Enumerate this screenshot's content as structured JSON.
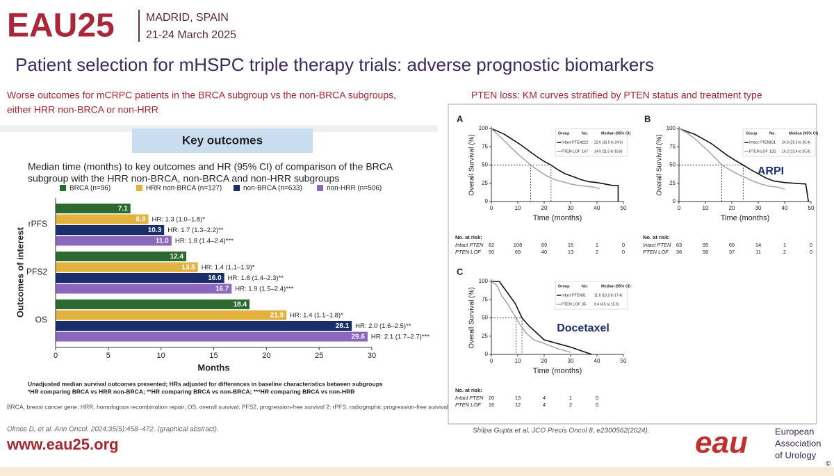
{
  "header": {
    "logo": "EAU25",
    "city": "MADRID, SPAIN",
    "dates": "21-24 March 2025",
    "title": "Patient selection for mHSPC triple therapy trials: adverse prognostic biomarkers"
  },
  "left": {
    "subtitle_lines": [
      "Worse outcomes for mCRPC patients in the BRCA subgroup vs the non-BRCA subgroups,",
      "either HRR non-BRCA or non-HRR"
    ],
    "box_title": "Key outcomes",
    "caption_lines": [
      "Median time (months) to key outcomes and HR (95% CI) of comparison of the BRCA",
      "subgroup with the HRR non-BRCA, non-BRCA and non-HRR subgroups"
    ],
    "footnotes": [
      "Unadjusted median survival outcomes presented; HRs adjusted for differences in baseline characteristics between subgroups",
      "*HR comparing BRCA vs HRR non-BRCA; **HR comparing BRCA vs non-BRCA; ***HR comparing BRCA vs non-HRR"
    ],
    "abbreviations": "BRCA, breast cancer gene; HRR, homologous recombination repair; OS, overall survival; PFS2, progression-free survival 2; rPFS, radiographic progression-free survival",
    "citation": "Olmos D, et al. Ann Oncol. 2024;35(5):458–472. (graphical abstract)."
  },
  "right": {
    "subtitle": "PTEN loss: KM curves stratified by PTEN status and treatment type",
    "citation": "Shilpa Gupta et al. JCO Precis Oncol 8, e2300562(2024)."
  },
  "footer": {
    "url": "www.eau25.org",
    "logo": "eau",
    "org_lines": [
      "European",
      "Association",
      "of Urology"
    ],
    "copyright": "©"
  },
  "chart_data": [
    {
      "type": "hbar",
      "categories": [
        "rPFS",
        "PFS2",
        "OS"
      ],
      "xlabel": "Months",
      "ylabel": "Outcomes of interest",
      "xlim": [
        0,
        30
      ],
      "xticks": [
        0,
        5,
        10,
        15,
        20,
        25,
        30
      ],
      "legend": "top",
      "series": [
        {
          "name": "BRCA (n=96)",
          "color": "#2d6a30",
          "values": [
            7.1,
            12.4,
            18.4
          ],
          "value_labels": [
            "7.1",
            "12.4",
            "18.4"
          ]
        },
        {
          "name": "HRR non-BRCA (n=127)",
          "color": "#e2b23f",
          "values": [
            8.8,
            13.5,
            21.9
          ],
          "value_labels": [
            "8.8",
            "13.5",
            "21.9"
          ],
          "annotations": [
            "HR: 1.3 (1.0–1.8)*",
            "HR: 1.4 (1.1–1.9)*",
            "HR: 1.4 (1.1–1.8)*"
          ]
        },
        {
          "name": "non-BRCA (n=633)",
          "color": "#1b2e6c",
          "values": [
            10.3,
            16.0,
            28.1
          ],
          "value_labels": [
            "10.3",
            "16.0",
            "28.1"
          ],
          "annotations": [
            "HR: 1.7 (1.3–2.2)**",
            "HR: 1.8 (1.4–2.3)**",
            "HR: 2.0 (1.6–2.5)**"
          ]
        },
        {
          "name": "non-HRR (n=506)",
          "color": "#8b67bd",
          "values": [
            11.0,
            16.7,
            29.6
          ],
          "value_labels": [
            "11.0",
            "16.7",
            "29.6"
          ],
          "annotations": [
            "HR: 1.8 (1.4–2.4)***",
            "HR: 1.9 (1.5–2.4)***",
            "HR: 2.1 (1.7–2.7)***"
          ]
        }
      ]
    },
    {
      "type": "line",
      "panel": "A",
      "xlabel": "Time (months)",
      "ylabel": "Overall Survival (%)",
      "xlim": [
        0,
        50
      ],
      "ylim": [
        0,
        100
      ],
      "xticks": [
        0,
        10,
        20,
        30,
        40,
        50
      ],
      "yticks": [
        0,
        25,
        50,
        75,
        100
      ],
      "legend_header": [
        "Group",
        "No.",
        "Median (95% CI)"
      ],
      "series": [
        {
          "name": "Intact PTEN",
          "color": "#111111",
          "n": "222",
          "median": "22.6 (16.5 to 24.9)",
          "x": [
            0,
            2,
            5,
            8,
            11,
            14,
            17,
            20,
            22.6,
            25,
            28,
            31,
            34,
            37,
            40,
            43,
            46,
            48,
            48
          ],
          "values": [
            100,
            97,
            92,
            85,
            78,
            70,
            62,
            55,
            50,
            44,
            38,
            34,
            30,
            27,
            26,
            24,
            22,
            22,
            0
          ]
        },
        {
          "name": "PTEN LOF",
          "color": "#a8a8a8",
          "n": "167",
          "median": "14.9 (11.5 to 19.8)",
          "x": [
            0,
            2,
            5,
            8,
            11,
            14,
            14.9,
            18,
            21,
            24,
            27,
            30,
            33,
            36,
            40,
            41
          ],
          "values": [
            100,
            93,
            83,
            72,
            62,
            53,
            50,
            42,
            35,
            30,
            27,
            24,
            22,
            21,
            19,
            17
          ]
        }
      ],
      "at_risk": {
        "title": "No. at risk:",
        "rows": [
          {
            "label": "Intact PTEN",
            "values": [
              82,
              108,
              69,
              15,
              1,
              0
            ]
          },
          {
            "label": "PTEN LOF",
            "values": [
              50,
              69,
              40,
              13,
              2,
              0
            ]
          }
        ]
      }
    },
    {
      "type": "line",
      "panel": "B",
      "annotation": "ARPI",
      "xlabel": "Time (months)",
      "ylabel": "Overall Survival (%)",
      "xlim": [
        0,
        50
      ],
      "ylim": [
        0,
        100
      ],
      "xticks": [
        0,
        10,
        20,
        30,
        40,
        50
      ],
      "yticks": [
        0,
        25,
        50,
        75,
        100
      ],
      "legend_header": [
        "Group",
        "No.",
        "Median (95% CI)"
      ],
      "series": [
        {
          "name": "Intact PTEN",
          "color": "#111111",
          "n": "191",
          "median": "24.3 (20.5 to 26.4)",
          "x": [
            0,
            3,
            6,
            9,
            12,
            15,
            18,
            21,
            24.3,
            27,
            30,
            33,
            36,
            40,
            44,
            48,
            49
          ],
          "values": [
            100,
            96,
            92,
            86,
            80,
            72,
            64,
            57,
            50,
            44,
            38,
            32,
            28,
            26,
            25,
            24,
            0
          ]
        },
        {
          "name": "PTEN LOF",
          "color": "#a8a8a8",
          "n": "132",
          "median": "16.2 (13.4 to 25.8)",
          "x": [
            0,
            3,
            6,
            9,
            12,
            15,
            16.2,
            19,
            22,
            25,
            28,
            31,
            34,
            37,
            40
          ],
          "values": [
            100,
            94,
            86,
            76,
            66,
            55,
            50,
            44,
            38,
            33,
            28,
            24,
            21,
            20,
            17
          ]
        }
      ],
      "at_risk": {
        "title": "No. at risk:",
        "rows": [
          {
            "label": "Intact PTEN",
            "values": [
              63,
              95,
              65,
              14,
              1,
              0
            ]
          },
          {
            "label": "PTEN LOF",
            "values": [
              36,
              58,
              37,
              11,
              2,
              0
            ]
          }
        ]
      }
    },
    {
      "type": "line",
      "panel": "C",
      "annotation": "Docetaxel",
      "xlabel": "Time (months)",
      "ylabel": "Overall Survival (%)",
      "xlim": [
        0,
        50
      ],
      "ylim": [
        0,
        100
      ],
      "xticks": [
        0,
        10,
        20,
        30,
        40,
        50
      ],
      "yticks": [
        0,
        25,
        50,
        75,
        100
      ],
      "legend_header": [
        "Group",
        "No.",
        "Median (95% CI)"
      ],
      "series": [
        {
          "name": "Intact PTEN",
          "color": "#111111",
          "n": "31",
          "median": "11.6 (10.2 to 17.4)",
          "x": [
            0,
            3,
            5,
            7,
            9,
            11.6,
            14,
            17,
            20,
            25,
            30,
            34,
            38
          ],
          "values": [
            100,
            100,
            90,
            80,
            70,
            50,
            40,
            30,
            20,
            15,
            10,
            5,
            0
          ]
        },
        {
          "name": "PTEN LOF",
          "color": "#a8a8a8",
          "n": "35",
          "median": "9.4 (4.5 to 15.0)",
          "x": [
            0,
            2,
            4,
            6,
            8,
            9.4,
            11,
            13,
            16,
            20,
            25,
            30
          ],
          "values": [
            100,
            95,
            80,
            70,
            58,
            50,
            40,
            30,
            20,
            15,
            8,
            3
          ]
        }
      ],
      "at_risk": {
        "title": "No. at risk:",
        "rows": [
          {
            "label": "Intact PTEN",
            "values": [
              20,
              13,
              4,
              1,
              0
            ]
          },
          {
            "label": "PTEN LOF",
            "values": [
              16,
              12,
              4,
              2,
              0
            ]
          }
        ]
      }
    }
  ]
}
